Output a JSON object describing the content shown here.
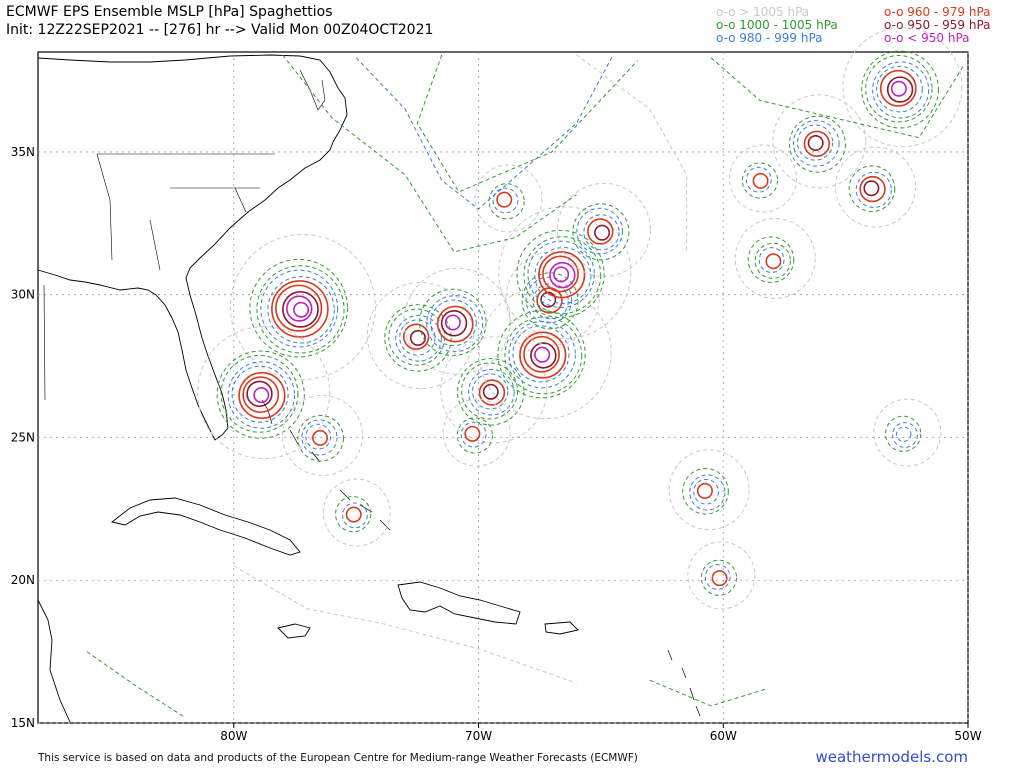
{
  "header": {
    "title": "ECMWF EPS Ensemble MSLP [hPa] Spaghettios",
    "subtitle": "Init: 12Z22SEP2021 -- [276] hr --> Valid Mon 00Z04OCT2021"
  },
  "legend": {
    "items": [
      {
        "label": "o-o > 1005 hPa",
        "color": "#c8c8c8"
      },
      {
        "label": "o-o 1000 - 1005 hPa",
        "color": "#2e9e2e"
      },
      {
        "label": "o-o 980 - 999 hPa",
        "color": "#3a7fd5"
      },
      {
        "label": "o-o 960 - 979 hPa",
        "color": "#d93b1f"
      },
      {
        "label": "o-o 950 - 959 hPa",
        "color": "#8b1a2b"
      },
      {
        "label": "o-o < 950 hPa",
        "color": "#c020c0"
      }
    ]
  },
  "axes": {
    "lon_ticks": [
      "80W",
      "70W",
      "60W",
      "50W"
    ],
    "lat_ticks": [
      "35N",
      "30N",
      "25N",
      "20N",
      "15N"
    ],
    "lon_values": [
      -80,
      -70,
      -60,
      -50
    ],
    "lat_values": [
      35,
      30,
      25,
      20,
      15
    ],
    "lon_range": [
      -88,
      -50
    ],
    "lat_range": [
      15,
      38.5
    ]
  },
  "members": [
    {
      "lon": -77.3,
      "lat": 29.5,
      "levels": [
        "g",
        "g",
        "b",
        "b",
        "r",
        "r",
        "d",
        "m",
        "m"
      ]
    },
    {
      "lon": -78.9,
      "lat": 26.5,
      "levels": [
        "g",
        "g",
        "b",
        "b",
        "r",
        "r",
        "d",
        "m"
      ]
    },
    {
      "lon": -76.5,
      "lat": 25.0,
      "levels": [
        "g",
        "b",
        "b",
        "r"
      ]
    },
    {
      "lon": -75.1,
      "lat": 22.3,
      "levels": [
        "g",
        "b",
        "r"
      ]
    },
    {
      "lon": -72.5,
      "lat": 28.5,
      "levels": [
        "g",
        "g",
        "b",
        "b",
        "r",
        "d"
      ]
    },
    {
      "lon": -71.0,
      "lat": 29.0,
      "levels": [
        "g",
        "b",
        "b",
        "r",
        "d",
        "m"
      ]
    },
    {
      "lon": -69.5,
      "lat": 26.6,
      "levels": [
        "g",
        "g",
        "b",
        "b",
        "r",
        "d"
      ]
    },
    {
      "lon": -70.2,
      "lat": 25.1,
      "levels": [
        "g",
        "b",
        "r"
      ]
    },
    {
      "lon": -67.4,
      "lat": 27.9,
      "levels": [
        "g",
        "g",
        "b",
        "b",
        "r",
        "r",
        "d",
        "m"
      ]
    },
    {
      "lon": -67.1,
      "lat": 29.8,
      "levels": [
        "g",
        "b",
        "b",
        "r",
        "d"
      ]
    },
    {
      "lon": -66.6,
      "lat": 30.7,
      "levels": [
        "g",
        "g",
        "b",
        "b",
        "r",
        "r",
        "m",
        "m"
      ]
    },
    {
      "lon": -65.0,
      "lat": 32.2,
      "levels": [
        "g",
        "b",
        "b",
        "r",
        "d"
      ]
    },
    {
      "lon": -68.9,
      "lat": 33.3,
      "levels": [
        "g",
        "b",
        "r"
      ]
    },
    {
      "lon": -60.7,
      "lat": 23.1,
      "levels": [
        "g",
        "b",
        "b",
        "r"
      ]
    },
    {
      "lon": -60.2,
      "lat": 20.1,
      "levels": [
        "g",
        "b",
        "r"
      ]
    },
    {
      "lon": -58.0,
      "lat": 31.2,
      "levels": [
        "g",
        "g",
        "b",
        "r"
      ]
    },
    {
      "lon": -58.5,
      "lat": 34.0,
      "levels": [
        "g",
        "b",
        "r"
      ]
    },
    {
      "lon": -56.2,
      "lat": 35.3,
      "levels": [
        "g",
        "b",
        "b",
        "r",
        "d"
      ]
    },
    {
      "lon": -53.9,
      "lat": 33.7,
      "levels": [
        "g",
        "b",
        "r",
        "d"
      ]
    },
    {
      "lon": -52.8,
      "lat": 37.2,
      "levels": [
        "g",
        "g",
        "b",
        "b",
        "r",
        "d",
        "m"
      ]
    },
    {
      "lon": -52.6,
      "lat": 25.1,
      "levels": [
        "g",
        "b",
        "b"
      ]
    }
  ],
  "footer": {
    "note": "This service is based on data and products of the European Centre for Medium-range Weather Forecasts (ECMWF)",
    "brand": "weathermodels.com"
  }
}
